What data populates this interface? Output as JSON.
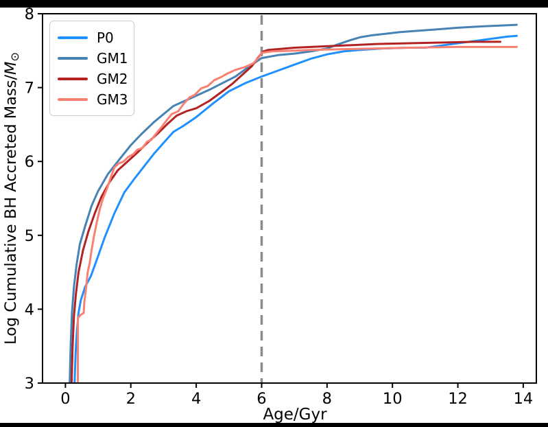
{
  "window": {
    "top_letterbox": true,
    "bottom_letterbox": true,
    "background": "#ffffff"
  },
  "chart_data": {
    "type": "line",
    "title": "",
    "xlabel": "Age/Gyr",
    "ylabel": "Log Cumulative BH Accreted Mass/M⊙",
    "ylabel_parts": {
      "prefix": "Log Cumulative BH Accreted Mass/",
      "var": "M",
      "sub": "⊙"
    },
    "xlim": [
      -0.7,
      14.4
    ],
    "ylim": [
      3,
      8
    ],
    "xticks": [
      0,
      2,
      4,
      6,
      8,
      10,
      12,
      14
    ],
    "yticks": [
      3,
      4,
      5,
      6,
      7,
      8
    ],
    "grid": false,
    "axis_color": "#000000",
    "legend_position": "upper-left",
    "annotations": [
      {
        "type": "vline",
        "x": 6.0,
        "style": "dashed",
        "color": "#8c8c8c",
        "width": 3.5
      }
    ],
    "series": [
      {
        "name": "P0",
        "color": "#1E90FF",
        "width": 3,
        "points": [
          [
            0.28,
            3.0
          ],
          [
            0.31,
            3.4
          ],
          [
            0.35,
            3.7
          ],
          [
            0.4,
            3.95
          ],
          [
            0.47,
            4.12
          ],
          [
            0.6,
            4.3
          ],
          [
            0.78,
            4.45
          ],
          [
            1.0,
            4.72
          ],
          [
            1.2,
            4.97
          ],
          [
            1.5,
            5.3
          ],
          [
            1.8,
            5.58
          ],
          [
            2.1,
            5.76
          ],
          [
            2.4,
            5.93
          ],
          [
            2.7,
            6.1
          ],
          [
            3.0,
            6.25
          ],
          [
            3.3,
            6.4
          ],
          [
            3.6,
            6.48
          ],
          [
            4.0,
            6.6
          ],
          [
            4.5,
            6.78
          ],
          [
            5.0,
            6.95
          ],
          [
            5.5,
            7.06
          ],
          [
            6.0,
            7.15
          ],
          [
            6.5,
            7.23
          ],
          [
            7.0,
            7.31
          ],
          [
            7.5,
            7.39
          ],
          [
            8.0,
            7.45
          ],
          [
            8.5,
            7.49
          ],
          [
            9.0,
            7.51
          ],
          [
            9.7,
            7.53
          ],
          [
            10.5,
            7.54
          ],
          [
            11.0,
            7.54
          ],
          [
            11.5,
            7.57
          ],
          [
            12.0,
            7.6
          ],
          [
            12.5,
            7.63
          ],
          [
            13.0,
            7.66
          ],
          [
            13.5,
            7.69
          ],
          [
            13.8,
            7.7
          ]
        ]
      },
      {
        "name": "GM1",
        "color": "#4682B4",
        "width": 3,
        "points": [
          [
            0.13,
            3.0
          ],
          [
            0.16,
            3.5
          ],
          [
            0.2,
            3.95
          ],
          [
            0.26,
            4.3
          ],
          [
            0.34,
            4.6
          ],
          [
            0.44,
            4.88
          ],
          [
            0.6,
            5.12
          ],
          [
            0.8,
            5.4
          ],
          [
            1.0,
            5.6
          ],
          [
            1.3,
            5.83
          ],
          [
            1.6,
            6.0
          ],
          [
            2.0,
            6.22
          ],
          [
            2.3,
            6.36
          ],
          [
            2.7,
            6.53
          ],
          [
            3.0,
            6.64
          ],
          [
            3.3,
            6.75
          ],
          [
            3.8,
            6.85
          ],
          [
            4.4,
            6.97
          ],
          [
            4.8,
            7.06
          ],
          [
            5.2,
            7.15
          ],
          [
            5.6,
            7.28
          ],
          [
            5.9,
            7.37
          ],
          [
            6.0,
            7.4
          ],
          [
            6.5,
            7.44
          ],
          [
            7.0,
            7.46
          ],
          [
            7.5,
            7.49
          ],
          [
            8.0,
            7.53
          ],
          [
            8.3,
            7.58
          ],
          [
            8.7,
            7.64
          ],
          [
            9.0,
            7.68
          ],
          [
            9.4,
            7.71
          ],
          [
            9.8,
            7.73
          ],
          [
            10.2,
            7.75
          ],
          [
            10.8,
            7.77
          ],
          [
            11.4,
            7.79
          ],
          [
            12.0,
            7.81
          ],
          [
            12.8,
            7.83
          ],
          [
            13.3,
            7.84
          ],
          [
            13.8,
            7.85
          ]
        ]
      },
      {
        "name": "GM2",
        "color": "#B22222",
        "width": 3,
        "points": [
          [
            0.19,
            3.0
          ],
          [
            0.22,
            3.5
          ],
          [
            0.26,
            3.9
          ],
          [
            0.32,
            4.2
          ],
          [
            0.4,
            4.5
          ],
          [
            0.54,
            4.8
          ],
          [
            0.7,
            5.05
          ],
          [
            0.9,
            5.3
          ],
          [
            1.1,
            5.52
          ],
          [
            1.35,
            5.72
          ],
          [
            1.6,
            5.88
          ],
          [
            1.9,
            6.0
          ],
          [
            2.2,
            6.12
          ],
          [
            2.5,
            6.25
          ],
          [
            2.83,
            6.38
          ],
          [
            3.1,
            6.5
          ],
          [
            3.4,
            6.62
          ],
          [
            3.7,
            6.68
          ],
          [
            4.0,
            6.72
          ],
          [
            4.4,
            6.82
          ],
          [
            4.8,
            6.95
          ],
          [
            5.1,
            7.05
          ],
          [
            5.4,
            7.17
          ],
          [
            5.7,
            7.29
          ],
          [
            5.85,
            7.38
          ],
          [
            5.95,
            7.44
          ],
          [
            6.05,
            7.49
          ],
          [
            6.2,
            7.51
          ],
          [
            7.0,
            7.54
          ],
          [
            7.5,
            7.55
          ],
          [
            8.5,
            7.57
          ],
          [
            9.5,
            7.59
          ],
          [
            10.5,
            7.6
          ],
          [
            11.5,
            7.61
          ],
          [
            12.5,
            7.62
          ],
          [
            13.3,
            7.62
          ]
        ]
      },
      {
        "name": "GM3",
        "color": "#FA8072",
        "width": 3,
        "points": [
          [
            0.38,
            3.0
          ],
          [
            0.38,
            3.88
          ],
          [
            0.46,
            3.92
          ],
          [
            0.56,
            3.95
          ],
          [
            0.58,
            4.1
          ],
          [
            0.64,
            4.32
          ],
          [
            0.68,
            4.5
          ],
          [
            0.74,
            4.62
          ],
          [
            0.8,
            4.8
          ],
          [
            0.88,
            5.0
          ],
          [
            0.96,
            5.18
          ],
          [
            1.05,
            5.35
          ],
          [
            1.15,
            5.5
          ],
          [
            1.27,
            5.63
          ],
          [
            1.4,
            5.8
          ],
          [
            1.5,
            5.92
          ],
          [
            1.62,
            5.97
          ],
          [
            1.78,
            6.0
          ],
          [
            1.92,
            6.06
          ],
          [
            2.08,
            6.1
          ],
          [
            2.2,
            6.16
          ],
          [
            2.35,
            6.18
          ],
          [
            2.5,
            6.27
          ],
          [
            2.62,
            6.29
          ],
          [
            2.78,
            6.38
          ],
          [
            2.95,
            6.47
          ],
          [
            3.1,
            6.56
          ],
          [
            3.25,
            6.64
          ],
          [
            3.45,
            6.68
          ],
          [
            3.6,
            6.77
          ],
          [
            3.8,
            6.87
          ],
          [
            3.95,
            6.9
          ],
          [
            4.15,
            6.99
          ],
          [
            4.35,
            7.02
          ],
          [
            4.55,
            7.1
          ],
          [
            4.75,
            7.14
          ],
          [
            4.95,
            7.19
          ],
          [
            5.2,
            7.24
          ],
          [
            5.5,
            7.28
          ],
          [
            5.75,
            7.33
          ],
          [
            5.9,
            7.4
          ],
          [
            6.0,
            7.47
          ],
          [
            6.3,
            7.49
          ],
          [
            7.0,
            7.5
          ],
          [
            7.5,
            7.51
          ],
          [
            8.5,
            7.52
          ],
          [
            9.5,
            7.53
          ],
          [
            10.5,
            7.54
          ],
          [
            12.0,
            7.55
          ],
          [
            13.0,
            7.55
          ],
          [
            13.8,
            7.55
          ]
        ]
      }
    ]
  }
}
